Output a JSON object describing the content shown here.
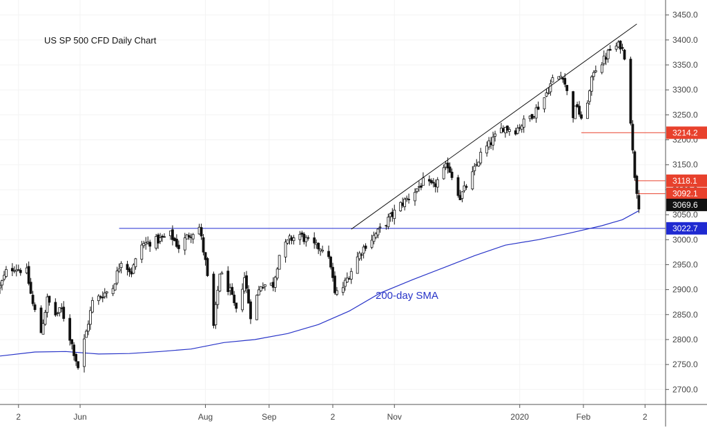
{
  "chart_data": {
    "type": "candlestick",
    "title": "US SP 500 CFD Daily Chart",
    "annotation": "200-day SMA",
    "xlabel": "",
    "ylabel": "",
    "ylim": [
      2670,
      3480
    ],
    "y_ticks": [
      2700,
      2750,
      2800,
      2850,
      2900,
      2950,
      3000,
      3050,
      3100,
      3150,
      3200,
      3250,
      3300,
      3350,
      3400,
      3450
    ],
    "y_tick_labels": [
      "2700.0",
      "2750.0",
      "2800.0",
      "2850.0",
      "2900.0",
      "2950.0",
      "3000.0",
      "3050.0",
      "3100.0",
      "3150.0",
      "3200.0",
      "3250.0",
      "3300.0",
      "3350.0",
      "3400.0",
      "3450.0"
    ],
    "x_range": [
      "2019-04-23",
      "2020-03-12"
    ],
    "x_ticks": [
      {
        "date": "2019-05-02",
        "label": "2"
      },
      {
        "date": "2019-06-01",
        "label": "Jun"
      },
      {
        "date": "2019-08-01",
        "label": "Aug"
      },
      {
        "date": "2019-09-01",
        "label": "Sep"
      },
      {
        "date": "2019-10-02",
        "label": "2"
      },
      {
        "date": "2019-11-01",
        "label": "Nov"
      },
      {
        "date": "2020-01-01",
        "label": "2020"
      },
      {
        "date": "2020-02-01",
        "label": "Feb"
      },
      {
        "date": "2020-03-02",
        "label": "2"
      }
    ],
    "price_labels": [
      {
        "value": 3214.2,
        "label": "3214.2",
        "color": "#e8412c"
      },
      {
        "value": 3118.1,
        "label": "3118.1",
        "color": "#e8412c"
      },
      {
        "value": 3092.1,
        "label": "3092.1",
        "color": "#e8412c"
      },
      {
        "value": 3069.6,
        "label": "3069.6",
        "color": "#111111"
      },
      {
        "value": 3022.7,
        "label": "3022.7",
        "color": "#1f2ad1"
      }
    ],
    "horizontal_lines": [
      {
        "value": 3022.7,
        "start": "2019-06-20",
        "end": "2020-03-12",
        "color": "#1f2ad1"
      },
      {
        "value": 3214.2,
        "start": "2020-01-31",
        "end": "2020-03-12",
        "color": "#e8412c"
      },
      {
        "value": 3118.1,
        "start": "2020-02-26",
        "end": "2020-03-12",
        "color": "#e8412c"
      },
      {
        "value": 3092.1,
        "start": "2020-02-27",
        "end": "2020-03-12",
        "color": "#e8412c"
      }
    ],
    "trendline": {
      "start_date": "2019-10-11",
      "start_value": 3021,
      "end_date": "2020-02-27",
      "end_value": 3432,
      "color": "#111111"
    },
    "sma200": {
      "name": "200-day SMA",
      "color": "#2733c8",
      "points": [
        [
          "2019-04-23",
          2767
        ],
        [
          "2019-05-10",
          2775
        ],
        [
          "2019-05-25",
          2776
        ],
        [
          "2019-06-10",
          2771
        ],
        [
          "2019-06-25",
          2772
        ],
        [
          "2019-07-10",
          2776
        ],
        [
          "2019-07-25",
          2781
        ],
        [
          "2019-08-10",
          2794
        ],
        [
          "2019-08-25",
          2800
        ],
        [
          "2019-09-10",
          2812
        ],
        [
          "2019-09-25",
          2830
        ],
        [
          "2019-10-10",
          2857
        ],
        [
          "2019-10-25",
          2893
        ],
        [
          "2019-11-10",
          2920
        ],
        [
          "2019-11-25",
          2944
        ],
        [
          "2019-12-10",
          2968
        ],
        [
          "2019-12-25",
          2989
        ],
        [
          "2020-01-10",
          3000
        ],
        [
          "2020-01-25",
          3013
        ],
        [
          "2020-02-10",
          3028
        ],
        [
          "2020-02-20",
          3040
        ],
        [
          "2020-02-28",
          3058
        ]
      ]
    },
    "ohlc_path": [
      [
        "2019-04-23",
        2905
      ],
      [
        "2019-04-26",
        2935
      ],
      [
        "2019-04-30",
        2945
      ],
      [
        "2019-05-06",
        2935
      ],
      [
        "2019-05-09",
        2870
      ],
      [
        "2019-05-13",
        2815
      ],
      [
        "2019-05-16",
        2880
      ],
      [
        "2019-05-20",
        2850
      ],
      [
        "2019-05-23",
        2860
      ],
      [
        "2019-05-28",
        2790
      ],
      [
        "2019-05-31",
        2745
      ],
      [
        "2019-06-04",
        2815
      ],
      [
        "2019-06-07",
        2875
      ],
      [
        "2019-06-12",
        2890
      ],
      [
        "2019-06-17",
        2905
      ],
      [
        "2019-06-21",
        2960
      ],
      [
        "2019-06-26",
        2935
      ],
      [
        "2019-07-01",
        2990
      ],
      [
        "2019-07-05",
        2995
      ],
      [
        "2019-07-10",
        3000
      ],
      [
        "2019-07-15",
        3010
      ],
      [
        "2019-07-19",
        2985
      ],
      [
        "2019-07-24",
        3010
      ],
      [
        "2019-07-29",
        3025
      ],
      [
        "2019-08-01",
        2955
      ],
      [
        "2019-08-05",
        2825
      ],
      [
        "2019-08-08",
        2935
      ],
      [
        "2019-08-13",
        2895
      ],
      [
        "2019-08-16",
        2855
      ],
      [
        "2019-08-20",
        2925
      ],
      [
        "2019-08-23",
        2850
      ],
      [
        "2019-08-28",
        2910
      ],
      [
        "2019-09-03",
        2910
      ],
      [
        "2019-09-06",
        2970
      ],
      [
        "2019-09-11",
        3000
      ],
      [
        "2019-09-16",
        3010
      ],
      [
        "2019-09-20",
        2995
      ],
      [
        "2019-09-24",
        2985
      ],
      [
        "2019-09-27",
        2985
      ],
      [
        "2019-10-01",
        2950
      ],
      [
        "2019-10-03",
        2890
      ],
      [
        "2019-10-07",
        2905
      ],
      [
        "2019-10-10",
        2930
      ],
      [
        "2019-10-14",
        2965
      ],
      [
        "2019-10-18",
        2990
      ],
      [
        "2019-10-24",
        3015
      ],
      [
        "2019-10-29",
        3040
      ],
      [
        "2019-11-04",
        3070
      ],
      [
        "2019-11-08",
        3085
      ],
      [
        "2019-11-15",
        3115
      ],
      [
        "2019-11-20",
        3105
      ],
      [
        "2019-11-27",
        3150
      ],
      [
        "2019-12-03",
        3085
      ],
      [
        "2019-12-09",
        3130
      ],
      [
        "2019-12-13",
        3170
      ],
      [
        "2019-12-18",
        3195
      ],
      [
        "2019-12-24",
        3225
      ],
      [
        "2019-12-30",
        3220
      ],
      [
        "2020-01-03",
        3235
      ],
      [
        "2020-01-08",
        3255
      ],
      [
        "2020-01-13",
        3285
      ],
      [
        "2020-01-17",
        3320
      ],
      [
        "2020-01-22",
        3330
      ],
      [
        "2020-01-24",
        3295
      ],
      [
        "2020-01-27",
        3250
      ],
      [
        "2020-01-29",
        3270
      ],
      [
        "2020-01-31",
        3235
      ],
      [
        "2020-02-04",
        3295
      ],
      [
        "2020-02-06",
        3340
      ],
      [
        "2020-02-11",
        3360
      ],
      [
        "2020-02-14",
        3380
      ],
      [
        "2020-02-19",
        3390
      ],
      [
        "2020-02-21",
        3370
      ],
      [
        "2020-02-22",
        3345
      ],
      [
        "2020-02-24",
        3240
      ],
      [
        "2020-02-25",
        3175
      ],
      [
        "2020-02-26",
        3130
      ],
      [
        "2020-02-27",
        3100
      ],
      [
        "2020-02-28",
        3070
      ]
    ]
  }
}
